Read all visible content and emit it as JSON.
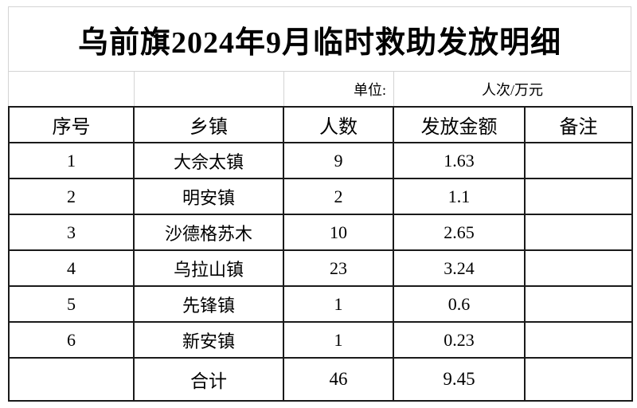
{
  "title": "乌前旗2024年9月临时救助发放明细",
  "unit_row": {
    "label": "单位:",
    "value": "人次/万元"
  },
  "table": {
    "headers": [
      "序号",
      "乡镇",
      "人数",
      "发放金额",
      "备注"
    ],
    "rows": [
      {
        "no": "1",
        "town": "大佘太镇",
        "count": "9",
        "amount": "1.63",
        "note": ""
      },
      {
        "no": "2",
        "town": "明安镇",
        "count": "2",
        "amount": "1.1",
        "note": ""
      },
      {
        "no": "3",
        "town": "沙德格苏木",
        "count": "10",
        "amount": "2.65",
        "note": ""
      },
      {
        "no": "4",
        "town": "乌拉山镇",
        "count": "23",
        "amount": "3.24",
        "note": ""
      },
      {
        "no": "5",
        "town": "先锋镇",
        "count": "1",
        "amount": "0.6",
        "note": ""
      },
      {
        "no": "6",
        "town": "新安镇",
        "count": "1",
        "amount": "0.23",
        "note": ""
      }
    ],
    "total": {
      "no": "",
      "label": "合计",
      "count": "46",
      "amount": "9.45",
      "note": ""
    }
  },
  "colors": {
    "grid_light": "#d4d4d4",
    "border_dark": "#1a1a1a",
    "text": "#000000",
    "background": "#ffffff"
  }
}
